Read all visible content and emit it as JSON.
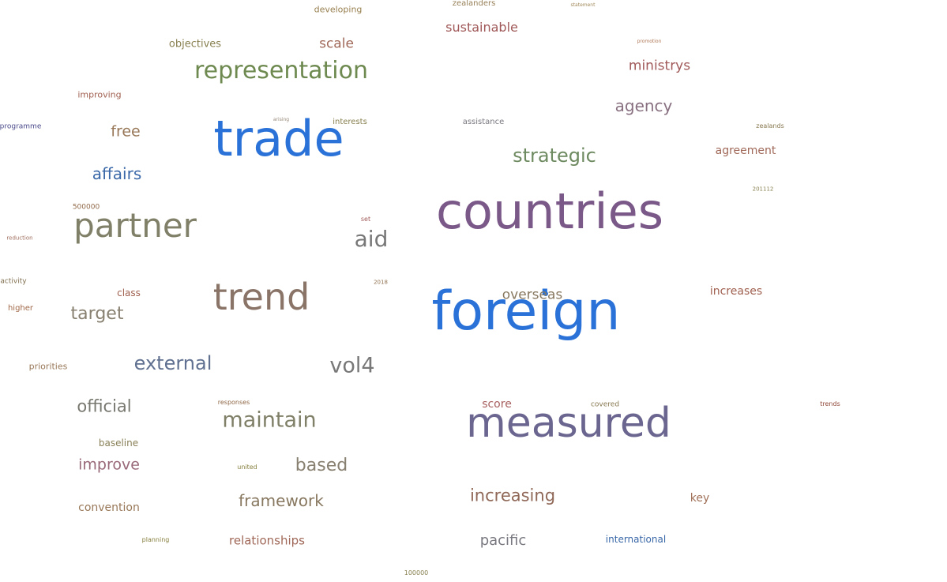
{
  "words": [
    {
      "text": "foreign",
      "color": "#2a72d8"
    },
    {
      "text": "countries",
      "color": "#7a5888"
    },
    {
      "text": "trade",
      "color": "#2a72d8"
    },
    {
      "text": "measured",
      "color": "#6a6690"
    },
    {
      "text": "trend",
      "color": "#8a7468"
    },
    {
      "text": "partner",
      "color": "#808068"
    },
    {
      "text": "representation",
      "color": "#6e8a50"
    },
    {
      "text": "maintain",
      "color": "#808068"
    },
    {
      "text": "strategic",
      "color": "#6e8a60"
    },
    {
      "text": "aid",
      "color": "#787878"
    },
    {
      "text": "vol4",
      "color": "#787878"
    },
    {
      "text": "external",
      "color": "#607090"
    },
    {
      "text": "agency",
      "color": "#887080"
    },
    {
      "text": "official",
      "color": "#787870"
    },
    {
      "text": "increasing",
      "color": "#906858"
    },
    {
      "text": "framework",
      "color": "#887860"
    },
    {
      "text": "based",
      "color": "#888070"
    },
    {
      "text": "target",
      "color": "#888070"
    },
    {
      "text": "affairs",
      "color": "#3a68a8"
    },
    {
      "text": "ministrys",
      "color": "#a05858"
    },
    {
      "text": "overseas",
      "color": "#887860"
    },
    {
      "text": "sustainable",
      "color": "#a05858"
    },
    {
      "text": "scale",
      "color": "#a06858"
    },
    {
      "text": "pacific",
      "color": "#787880"
    },
    {
      "text": "improve",
      "color": "#986878"
    },
    {
      "text": "free",
      "color": "#987858"
    },
    {
      "text": "relationships",
      "color": "#a06858"
    },
    {
      "text": "agreement",
      "color": "#a06858"
    },
    {
      "text": "increases",
      "color": "#a06050"
    },
    {
      "text": "score",
      "color": "#a86060"
    },
    {
      "text": "convention",
      "color": "#987858"
    },
    {
      "text": "key",
      "color": "#a07058"
    },
    {
      "text": "objectives",
      "color": "#888050"
    },
    {
      "text": "international",
      "color": "#3a68a8"
    },
    {
      "text": "baseline",
      "color": "#888058"
    },
    {
      "text": "priorities",
      "color": "#987858"
    },
    {
      "text": "class",
      "color": "#a06050"
    },
    {
      "text": "improving",
      "color": "#a06050"
    },
    {
      "text": "developing",
      "color": "#988050"
    },
    {
      "text": "assistance",
      "color": "#787880"
    },
    {
      "text": "interests",
      "color": "#888050"
    },
    {
      "text": "zealanders",
      "color": "#988058"
    },
    {
      "text": "higher",
      "color": "#a06848"
    },
    {
      "text": "programme",
      "color": "#4a4a8a"
    },
    {
      "text": "activity",
      "color": "#807050"
    },
    {
      "text": "500000",
      "color": "#906848"
    },
    {
      "text": "planning",
      "color": "#888040"
    },
    {
      "text": "united",
      "color": "#888040"
    },
    {
      "text": "responses",
      "color": "#906848"
    },
    {
      "text": "covered",
      "color": "#887850"
    },
    {
      "text": "100000",
      "color": "#888050"
    },
    {
      "text": "trends",
      "color": "#904838"
    },
    {
      "text": "zealands",
      "color": "#887850"
    },
    {
      "text": "set",
      "color": "#a05858"
    },
    {
      "text": "2018",
      "color": "#907050"
    },
    {
      "text": "201112",
      "color": "#888050"
    },
    {
      "text": "reduction",
      "color": "#a07060"
    },
    {
      "text": "arising",
      "color": "#988878"
    },
    {
      "text": "statement",
      "color": "#a08858"
    },
    {
      "text": "promotion",
      "color": "#b07858"
    }
  ],
  "dot_color": "#2a72d8"
}
